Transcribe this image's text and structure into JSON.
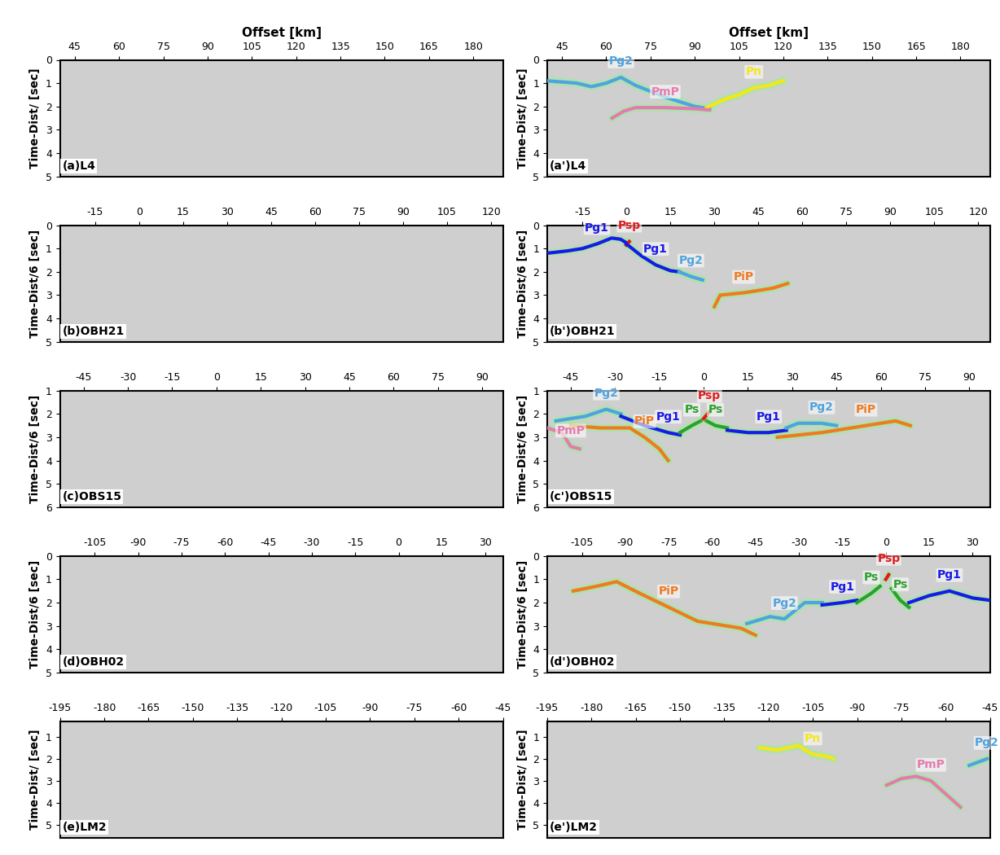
{
  "chart_data": [
    {
      "type": "line",
      "label": "(a)L4",
      "xlabel": "Offset [km]",
      "ylabel": "Time-Dist/ [sec]",
      "xlim": [
        40,
        190
      ],
      "xticks": [
        45,
        60,
        75,
        90,
        105,
        120,
        135,
        150,
        165,
        180
      ],
      "ylim": [
        5,
        0
      ],
      "yticks": [
        0,
        1,
        2,
        3,
        4,
        5
      ],
      "series": []
    },
    {
      "type": "line",
      "label": "(a')L4",
      "xlabel": "Offset [km]",
      "ylabel": "Time-Dist/ [sec]",
      "xlim": [
        40,
        190
      ],
      "xticks": [
        45,
        60,
        75,
        90,
        105,
        120,
        135,
        150,
        165,
        180
      ],
      "ylim": [
        5,
        0
      ],
      "yticks": [
        0,
        1,
        2,
        3,
        4,
        5
      ],
      "series": [
        {
          "name": "Pg2",
          "color": "#4fa3e0",
          "x": [
            40,
            50,
            55,
            60,
            65,
            70,
            80,
            90,
            95
          ],
          "values": [
            0.9,
            1.0,
            1.15,
            1.0,
            0.75,
            1.1,
            1.6,
            2.0,
            2.1
          ]
        },
        {
          "name": "Pn",
          "color": "#f5e61a",
          "x": [
            94,
            100,
            105,
            110,
            115,
            120
          ],
          "values": [
            2.05,
            1.7,
            1.5,
            1.2,
            1.1,
            0.9
          ]
        },
        {
          "name": "PmP",
          "color": "#e67ab0",
          "x": [
            62,
            66,
            70,
            80,
            90,
            95
          ],
          "values": [
            2.5,
            2.2,
            2.05,
            2.05,
            2.1,
            2.15
          ]
        }
      ]
    },
    {
      "type": "line",
      "label": "(b)OBH21",
      "ylabel": "Time-Dist/6 [sec]",
      "xlim": [
        -27,
        124
      ],
      "xticks": [
        -15,
        0,
        15,
        30,
        45,
        60,
        75,
        90,
        105,
        120
      ],
      "ylim": [
        5,
        0
      ],
      "yticks": [
        0,
        1,
        2,
        3,
        4,
        5
      ],
      "series": []
    },
    {
      "type": "line",
      "label": "(b')OBH21",
      "ylabel": "Time-Dist/6 [sec]",
      "xlim": [
        -27,
        124
      ],
      "xticks": [
        -15,
        0,
        15,
        30,
        45,
        60,
        75,
        90,
        105,
        120
      ],
      "ylim": [
        5,
        0
      ],
      "yticks": [
        0,
        1,
        2,
        3,
        4,
        5
      ],
      "series": [
        {
          "name": "Pg1",
          "color": "#1a1ae6",
          "x": [
            -27,
            -20,
            -15,
            -10,
            -5,
            -2,
            0
          ],
          "values": [
            1.2,
            1.1,
            1.0,
            0.8,
            0.55,
            0.6,
            0.75
          ]
        },
        {
          "name": "Psp",
          "color": "#e01a1a",
          "x": [
            0,
            1
          ],
          "values": [
            0.85,
            0.7
          ]
        },
        {
          "name": "Pg1",
          "color": "#1a1ae6",
          "x": [
            0,
            5,
            10,
            15,
            18
          ],
          "values": [
            0.8,
            1.3,
            1.7,
            1.95,
            2.0
          ]
        },
        {
          "name": "Pg2",
          "color": "#4fa3e0",
          "x": [
            18,
            22,
            26
          ],
          "values": [
            2.0,
            2.2,
            2.35
          ]
        },
        {
          "name": "PiP",
          "color": "#f07a20",
          "x": [
            30,
            32,
            40,
            50,
            55
          ],
          "values": [
            3.5,
            3.0,
            2.9,
            2.7,
            2.5
          ]
        }
      ]
    },
    {
      "type": "line",
      "label": "(c)OBS15",
      "ylabel": "Time-Dist/6 [sec]",
      "xlim": [
        -53,
        97
      ],
      "xticks": [
        -45,
        -30,
        -15,
        0,
        15,
        30,
        45,
        60,
        75,
        90
      ],
      "ylim": [
        6,
        1
      ],
      "yticks": [
        1,
        2,
        3,
        4,
        5,
        6
      ],
      "series": []
    },
    {
      "type": "line",
      "label": "(c')OBS15",
      "ylabel": "Time-Dist/6 [sec]",
      "xlim": [
        -53,
        97
      ],
      "xticks": [
        -45,
        -30,
        -15,
        0,
        15,
        30,
        45,
        60,
        75,
        90
      ],
      "ylim": [
        6,
        1
      ],
      "yticks": [
        1,
        2,
        3,
        4,
        5,
        6
      ],
      "series": [
        {
          "name": "Pg2",
          "color": "#4fa3e0",
          "x": [
            -50,
            -40,
            -33,
            -28
          ],
          "values": [
            2.3,
            2.1,
            1.8,
            2.0
          ]
        },
        {
          "name": "Pg1",
          "color": "#1a1ae6",
          "x": [
            -28,
            -20,
            -12,
            -8
          ],
          "values": [
            2.1,
            2.5,
            2.8,
            2.9
          ]
        },
        {
          "name": "Ps",
          "color": "#2ca02c",
          "x": [
            -8,
            -4,
            -1
          ],
          "values": [
            2.8,
            2.5,
            2.3
          ]
        },
        {
          "name": "Psp",
          "color": "#e01a1a",
          "x": [
            0,
            2
          ],
          "values": [
            2.2,
            1.9
          ]
        },
        {
          "name": "Ps",
          "color": "#2ca02c",
          "x": [
            1,
            4,
            8
          ],
          "values": [
            2.3,
            2.5,
            2.6
          ]
        },
        {
          "name": "Pg1",
          "color": "#1a1ae6",
          "x": [
            8,
            15,
            22,
            28
          ],
          "values": [
            2.7,
            2.8,
            2.8,
            2.7
          ]
        },
        {
          "name": "Pg2",
          "color": "#4fa3e0",
          "x": [
            28,
            32,
            40,
            45
          ],
          "values": [
            2.6,
            2.4,
            2.4,
            2.5
          ]
        },
        {
          "name": "PiP",
          "color": "#f07a20",
          "x": [
            25,
            40,
            55,
            65,
            70
          ],
          "values": [
            3.0,
            2.8,
            2.5,
            2.3,
            2.5
          ]
        },
        {
          "name": "PiP",
          "color": "#f07a20",
          "x": [
            -45,
            -35,
            -25,
            -20,
            -15,
            -12
          ],
          "values": [
            2.5,
            2.6,
            2.6,
            3.0,
            3.5,
            4.0
          ]
        },
        {
          "name": "PmP",
          "color": "#e67ab0",
          "x": [
            -53,
            -48,
            -45,
            -42
          ],
          "values": [
            2.6,
            2.8,
            3.4,
            3.5
          ]
        }
      ]
    },
    {
      "type": "line",
      "label": "(d)OBH02",
      "ylabel": "Time-Dist/6 [sec]",
      "xlim": [
        -117,
        36
      ],
      "xticks": [
        -105,
        -90,
        -75,
        -60,
        -45,
        -30,
        -15,
        0,
        15,
        30
      ],
      "ylim": [
        5,
        0
      ],
      "yticks": [
        0,
        1,
        2,
        3,
        4,
        5
      ],
      "series": []
    },
    {
      "type": "line",
      "label": "(d')OBH02",
      "ylabel": "Time-Dist/6 [sec]",
      "xlim": [
        -117,
        36
      ],
      "xticks": [
        -105,
        -90,
        -75,
        -60,
        -45,
        -30,
        -15,
        0,
        15,
        30
      ],
      "ylim": [
        5,
        0
      ],
      "yticks": [
        0,
        1,
        2,
        3,
        4,
        5
      ],
      "series": [
        {
          "name": "PiP",
          "color": "#f07a20",
          "x": [
            -108,
            -100,
            -93,
            -85,
            -75,
            -65,
            -55,
            -50,
            -45
          ],
          "values": [
            1.5,
            1.3,
            1.1,
            1.6,
            2.2,
            2.8,
            3.0,
            3.1,
            3.4
          ]
        },
        {
          "name": "Pg2",
          "color": "#4fa3e0",
          "x": [
            -48,
            -40,
            -35,
            -28,
            -22
          ],
          "values": [
            2.9,
            2.6,
            2.7,
            2.0,
            2.0
          ]
        },
        {
          "name": "Pg1",
          "color": "#1a1ae6",
          "x": [
            -22,
            -15,
            -10
          ],
          "values": [
            2.1,
            2.0,
            1.9
          ]
        },
        {
          "name": "Ps",
          "color": "#2ca02c",
          "x": [
            -10,
            -5,
            -2
          ],
          "values": [
            2.0,
            1.6,
            1.3
          ]
        },
        {
          "name": "Psp",
          "color": "#e01a1a",
          "x": [
            0,
            1
          ],
          "values": [
            1.0,
            0.8
          ]
        },
        {
          "name": "Ps",
          "color": "#2ca02c",
          "x": [
            2,
            5,
            8
          ],
          "values": [
            1.4,
            1.9,
            2.2
          ]
        },
        {
          "name": "Pg1",
          "color": "#1a1ae6",
          "x": [
            8,
            15,
            22,
            30,
            36
          ],
          "values": [
            2.0,
            1.7,
            1.5,
            1.8,
            1.9
          ]
        }
      ]
    },
    {
      "type": "line",
      "label": "(e)LM2",
      "ylabel": "Time-Dist/ [sec]",
      "xlim": [
        -195,
        -45
      ],
      "xticks": [
        -195,
        -180,
        -165,
        -150,
        -135,
        -120,
        -105,
        -90,
        -75,
        -60,
        -45
      ],
      "ylim": [
        5.6,
        0.3
      ],
      "yticks": [
        1,
        2,
        3,
        4,
        5
      ],
      "series": []
    },
    {
      "type": "line",
      "label": "(e')LM2",
      "ylabel": "Time-Dist/ [sec]",
      "xlim": [
        -195,
        -45
      ],
      "xticks": [
        -195,
        -180,
        -165,
        -150,
        -135,
        -120,
        -105,
        -90,
        -75,
        -60,
        -45
      ],
      "ylim": [
        5.6,
        0.3
      ],
      "yticks": [
        1,
        2,
        3,
        4,
        5
      ],
      "series": [
        {
          "name": "Pn",
          "color": "#f5e61a",
          "x": [
            -123,
            -117,
            -110,
            -105,
            -100,
            -98
          ],
          "values": [
            1.5,
            1.6,
            1.4,
            1.8,
            1.9,
            2.0
          ]
        },
        {
          "name": "PmP",
          "color": "#e67ab0",
          "x": [
            -80,
            -75,
            -70,
            -65,
            -60,
            -55
          ],
          "values": [
            3.2,
            2.9,
            2.8,
            3.0,
            3.6,
            4.2
          ]
        },
        {
          "name": "Pg2",
          "color": "#4fa3e0",
          "x": [
            -52,
            -46
          ],
          "values": [
            2.3,
            2.0
          ]
        }
      ]
    }
  ]
}
